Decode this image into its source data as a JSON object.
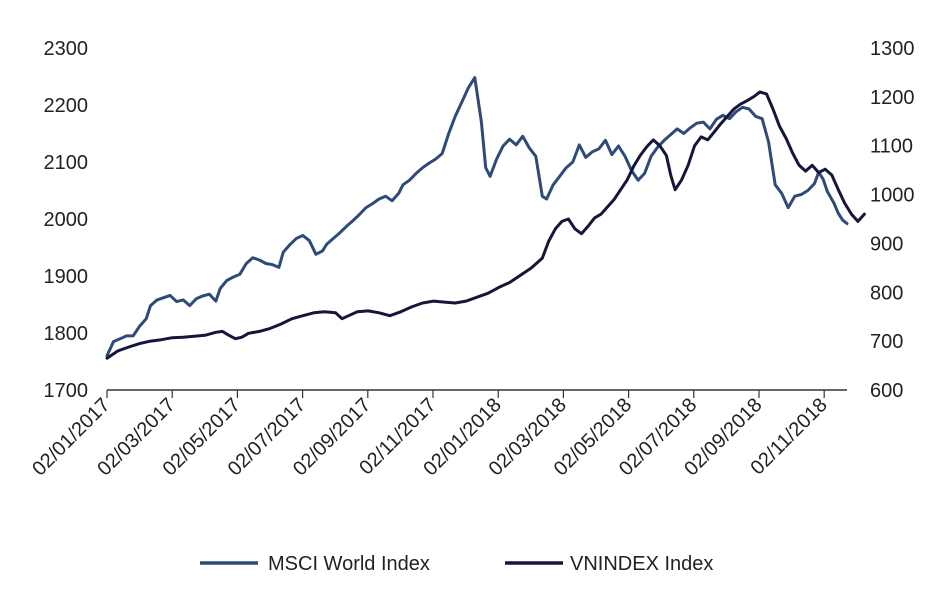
{
  "chart_data": {
    "type": "line",
    "title": "",
    "grid": false,
    "legend_position": "bottom",
    "x": {
      "ticks": [
        "02/01/2017",
        "02/03/2017",
        "02/05/2017",
        "02/07/2017",
        "02/09/2017",
        "02/11/2017",
        "02/01/2018",
        "02/03/2018",
        "02/05/2018",
        "02/07/2018",
        "02/09/2018",
        "02/11/2018"
      ],
      "range_months": [
        0,
        22.8
      ]
    },
    "y_left": {
      "min": 1700,
      "max": 2300,
      "ticks": [
        "2300",
        "2200",
        "2100",
        "2000",
        "1900",
        "1800",
        "1700"
      ]
    },
    "y_right": {
      "min": 600,
      "max": 1300,
      "ticks": [
        "1300",
        "1200",
        "1100",
        "1000",
        "900",
        "800",
        "700",
        "600"
      ]
    },
    "series": [
      {
        "name": "MSCI World Index",
        "axis": "left",
        "color": "#2f4a78",
        "points": [
          [
            0,
            1760
          ],
          [
            0.3,
            1785
          ],
          [
            0.6,
            1790
          ],
          [
            0.9,
            1795
          ],
          [
            1.2,
            1795
          ],
          [
            1.5,
            1812
          ],
          [
            1.8,
            1825
          ],
          [
            2.0,
            1848
          ],
          [
            2.3,
            1858
          ],
          [
            2.6,
            1862
          ],
          [
            2.9,
            1866
          ],
          [
            3.2,
            1855
          ],
          [
            3.5,
            1858
          ],
          [
            3.8,
            1848
          ],
          [
            4.1,
            1860
          ],
          [
            4.4,
            1865
          ],
          [
            4.7,
            1868
          ],
          [
            5.0,
            1856
          ],
          [
            5.2,
            1878
          ],
          [
            5.5,
            1892
          ],
          [
            5.8,
            1898
          ],
          [
            6.1,
            1903
          ],
          [
            6.4,
            1922
          ],
          [
            6.7,
            1932
          ],
          [
            7.0,
            1928
          ],
          [
            7.3,
            1922
          ],
          [
            7.6,
            1920
          ],
          [
            7.9,
            1915
          ],
          [
            8.1,
            1942
          ],
          [
            8.4,
            1955
          ],
          [
            8.7,
            1966
          ],
          [
            9.0,
            1971
          ],
          [
            9.3,
            1962
          ],
          [
            9.6,
            1938
          ],
          [
            9.9,
            1944
          ],
          [
            10.1,
            1956
          ],
          [
            10.4,
            1966
          ],
          [
            10.7,
            1976
          ],
          [
            11.0,
            1987
          ],
          [
            11.3,
            1997
          ],
          [
            11.6,
            2008
          ],
          [
            11.9,
            2020
          ],
          [
            12.2,
            2027
          ],
          [
            12.5,
            2035
          ],
          [
            12.8,
            2040
          ],
          [
            13.1,
            2032
          ],
          [
            13.4,
            2045
          ],
          [
            13.6,
            2060
          ],
          [
            13.9,
            2068
          ],
          [
            14.2,
            2080
          ],
          [
            14.5,
            2090
          ],
          [
            14.8,
            2098
          ],
          [
            15.1,
            2105
          ],
          [
            15.4,
            2115
          ],
          [
            15.7,
            2150
          ],
          [
            16.0,
            2180
          ],
          [
            16.3,
            2205
          ],
          [
            16.6,
            2230
          ],
          [
            16.9,
            2248
          ],
          [
            17.2,
            2170
          ],
          [
            17.4,
            2090
          ],
          [
            17.6,
            2075
          ],
          [
            17.9,
            2105
          ],
          [
            18.2,
            2128
          ],
          [
            18.5,
            2140
          ],
          [
            18.8,
            2130
          ],
          [
            19.1,
            2145
          ],
          [
            19.4,
            2125
          ],
          [
            19.7,
            2110
          ],
          [
            20.0,
            2040
          ],
          [
            20.2,
            2035
          ],
          [
            20.5,
            2060
          ],
          [
            20.8,
            2075
          ],
          [
            21.1,
            2090
          ],
          [
            21.4,
            2100
          ],
          [
            21.7,
            2130
          ],
          [
            22.0,
            2108
          ],
          [
            22.3,
            2118
          ],
          [
            22.6,
            2123
          ],
          [
            22.9,
            2138
          ],
          [
            23.2,
            2113
          ],
          [
            23.5,
            2128
          ],
          [
            23.8,
            2110
          ],
          [
            24.1,
            2085
          ],
          [
            24.4,
            2068
          ],
          [
            24.7,
            2080
          ],
          [
            25.0,
            2110
          ],
          [
            25.3,
            2126
          ],
          [
            25.6,
            2138
          ],
          [
            25.9,
            2148
          ],
          [
            26.2,
            2158
          ],
          [
            26.5,
            2150
          ],
          [
            26.8,
            2160
          ],
          [
            27.1,
            2168
          ],
          [
            27.4,
            2170
          ],
          [
            27.7,
            2158
          ],
          [
            28.0,
            2175
          ],
          [
            28.3,
            2182
          ],
          [
            28.6,
            2176
          ],
          [
            28.9,
            2188
          ],
          [
            29.2,
            2196
          ],
          [
            29.5,
            2193
          ],
          [
            29.8,
            2180
          ],
          [
            30.1,
            2176
          ],
          [
            30.4,
            2135
          ],
          [
            30.7,
            2060
          ],
          [
            31.0,
            2045
          ],
          [
            31.3,
            2020
          ],
          [
            31.6,
            2040
          ],
          [
            31.9,
            2043
          ],
          [
            32.2,
            2050
          ],
          [
            32.5,
            2062
          ],
          [
            32.7,
            2082
          ],
          [
            32.9,
            2070
          ],
          [
            33.1,
            2048
          ],
          [
            33.4,
            2028
          ],
          [
            33.6,
            2010
          ],
          [
            33.8,
            1998
          ],
          [
            34.0,
            1992
          ]
        ]
      },
      {
        "name": "VNINDEX Index",
        "axis": "right",
        "color": "#15163a",
        "points": [
          [
            0,
            665
          ],
          [
            0.5,
            680
          ],
          [
            1.0,
            688
          ],
          [
            1.5,
            695
          ],
          [
            2.0,
            700
          ],
          [
            2.5,
            703
          ],
          [
            3.0,
            707
          ],
          [
            3.5,
            708
          ],
          [
            4.0,
            710
          ],
          [
            4.5,
            712
          ],
          [
            5.0,
            718
          ],
          [
            5.3,
            720
          ],
          [
            5.6,
            712
          ],
          [
            5.9,
            705
          ],
          [
            6.2,
            708
          ],
          [
            6.5,
            716
          ],
          [
            7.0,
            720
          ],
          [
            7.5,
            726
          ],
          [
            8.0,
            735
          ],
          [
            8.5,
            746
          ],
          [
            9.0,
            752
          ],
          [
            9.5,
            758
          ],
          [
            10.0,
            760
          ],
          [
            10.5,
            758
          ],
          [
            10.8,
            746
          ],
          [
            11.1,
            752
          ],
          [
            11.5,
            760
          ],
          [
            12.0,
            762
          ],
          [
            12.5,
            758
          ],
          [
            13.0,
            752
          ],
          [
            13.5,
            760
          ],
          [
            14.0,
            770
          ],
          [
            14.5,
            778
          ],
          [
            15.0,
            782
          ],
          [
            15.5,
            780
          ],
          [
            16.0,
            778
          ],
          [
            16.5,
            782
          ],
          [
            17.0,
            790
          ],
          [
            17.5,
            798
          ],
          [
            18.0,
            810
          ],
          [
            18.5,
            820
          ],
          [
            19.0,
            835
          ],
          [
            19.5,
            850
          ],
          [
            20.0,
            870
          ],
          [
            20.3,
            905
          ],
          [
            20.6,
            930
          ],
          [
            20.9,
            945
          ],
          [
            21.2,
            950
          ],
          [
            21.5,
            930
          ],
          [
            21.8,
            920
          ],
          [
            22.1,
            935
          ],
          [
            22.4,
            952
          ],
          [
            22.7,
            960
          ],
          [
            23.0,
            975
          ],
          [
            23.3,
            990
          ],
          [
            23.6,
            1010
          ],
          [
            23.9,
            1030
          ],
          [
            24.2,
            1058
          ],
          [
            24.5,
            1080
          ],
          [
            24.8,
            1098
          ],
          [
            25.1,
            1112
          ],
          [
            25.4,
            1100
          ],
          [
            25.7,
            1080
          ],
          [
            25.9,
            1040
          ],
          [
            26.1,
            1010
          ],
          [
            26.4,
            1030
          ],
          [
            26.7,
            1060
          ],
          [
            27.0,
            1100
          ],
          [
            27.3,
            1118
          ],
          [
            27.6,
            1112
          ],
          [
            27.9,
            1128
          ],
          [
            28.2,
            1145
          ],
          [
            28.5,
            1160
          ],
          [
            28.8,
            1175
          ],
          [
            29.1,
            1185
          ],
          [
            29.4,
            1192
          ],
          [
            29.7,
            1200
          ],
          [
            30.0,
            1210
          ],
          [
            30.3,
            1206
          ],
          [
            30.6,
            1175
          ],
          [
            30.9,
            1140
          ],
          [
            31.2,
            1115
          ],
          [
            31.5,
            1085
          ],
          [
            31.8,
            1060
          ],
          [
            32.1,
            1048
          ],
          [
            32.4,
            1060
          ],
          [
            32.7,
            1045
          ],
          [
            33.0,
            1052
          ],
          [
            33.3,
            1040
          ],
          [
            33.6,
            1010
          ],
          [
            33.9,
            982
          ],
          [
            34.2,
            960
          ],
          [
            34.5,
            945
          ],
          [
            34.8,
            960
          ]
        ]
      }
    ]
  }
}
